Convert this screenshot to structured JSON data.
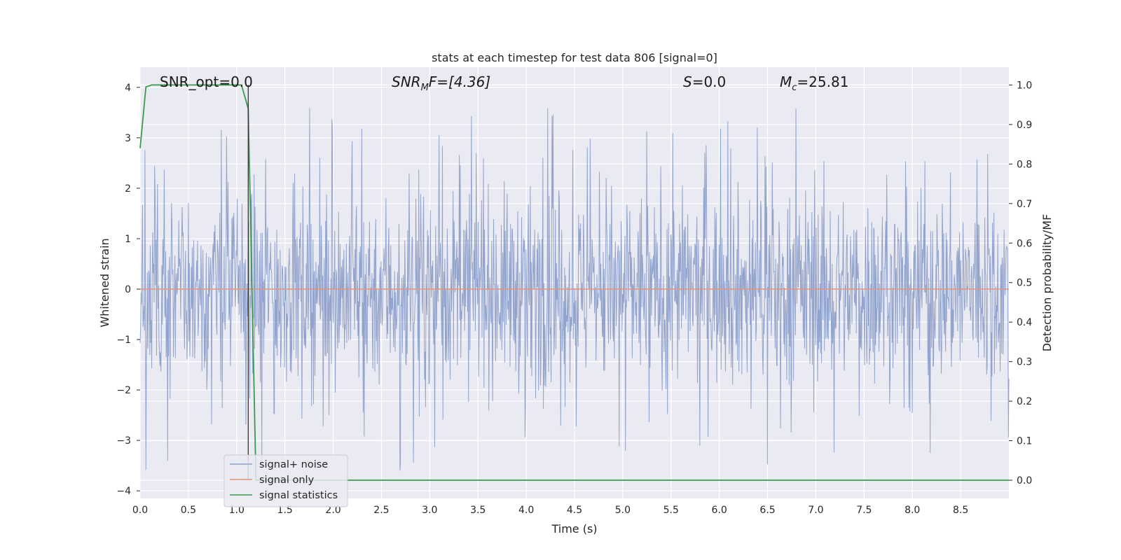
{
  "chart_data": {
    "type": "line",
    "title": "stats at each timestep for test data 806 [signal=0]",
    "xlabel": "Time (s)",
    "ylabel": "Whitened strain",
    "y2label": "Detection probability/MF",
    "xlim": [
      0.0,
      9.0
    ],
    "ylim": [
      -4.15,
      4.4
    ],
    "y2lim": [
      -0.046,
      1.045
    ],
    "xticks": [
      "0.0",
      "0.5",
      "1.0",
      "1.5",
      "2.0",
      "2.5",
      "3.0",
      "3.5",
      "4.0",
      "4.5",
      "5.0",
      "5.5",
      "6.0",
      "6.5",
      "7.0",
      "7.5",
      "8.0",
      "8.5"
    ],
    "xtick_values": [
      0,
      0.5,
      1,
      1.5,
      2,
      2.5,
      3,
      3.5,
      4,
      4.5,
      5,
      5.5,
      6,
      6.5,
      7,
      7.5,
      8,
      8.5
    ],
    "yticks": [
      "4",
      "3",
      "2",
      "1",
      "0",
      "−1",
      "−2",
      "−3",
      "−4"
    ],
    "ytick_values": [
      4,
      3,
      2,
      1,
      0,
      -1,
      -2,
      -3,
      -4
    ],
    "y2ticks": [
      "1.0",
      "0.9",
      "0.8",
      "0.7",
      "0.6",
      "0.5",
      "0.4",
      "0.3",
      "0.2",
      "0.1",
      "0.0"
    ],
    "y2tick_values": [
      1.0,
      0.9,
      0.8,
      0.7,
      0.6,
      0.5,
      0.4,
      0.3,
      0.2,
      0.1,
      0.0
    ],
    "grid": true,
    "legend_position": "lower-left",
    "annotations": {
      "snr_opt": "SNR_opt=0.0",
      "snr_mf_main": "SNR",
      "snr_mf_sub": "M",
      "snr_mf_tail": "F=[4.36]",
      "s_main": "S",
      "s_tail": "=0.0",
      "mc_main": "M",
      "mc_sub": "c",
      "mc_tail": "=25.81"
    },
    "vertical_marker_x": 1.12,
    "series": [
      {
        "name": "signal+ noise",
        "color": "#8da0cb",
        "description": "dense whitened noise, mostly within ±1.5 with spikes up to about 4.0 and down to about -3.7",
        "amplitude_range": [
          -3.7,
          4.0
        ]
      },
      {
        "name": "signal only",
        "color": "#e5937a",
        "x": [
          0.0,
          9.0
        ],
        "values": [
          0.0,
          0.0
        ]
      },
      {
        "name": "signal statistics",
        "color": "#3a9b4e",
        "axis": "right",
        "x": [
          0.0,
          0.06,
          0.12,
          0.25,
          0.5,
          0.75,
          0.9,
          1.0,
          1.05,
          1.12,
          1.2,
          1.3,
          1.6,
          2.0,
          3.0,
          4.0,
          5.0,
          6.0,
          7.0,
          8.0,
          9.0
        ],
        "values": [
          0.84,
          0.995,
          1.0,
          1.0,
          1.0,
          1.0,
          1.0,
          1.0,
          1.0,
          0.94,
          0.0,
          0.0,
          0.0,
          0.0,
          0.0,
          0.0,
          0.0,
          0.0,
          0.0,
          0.0,
          0.0
        ]
      }
    ]
  },
  "colors": {
    "plot_background": "#eaeaf2",
    "grid": "#ffffff",
    "marker_line": "#333333"
  }
}
